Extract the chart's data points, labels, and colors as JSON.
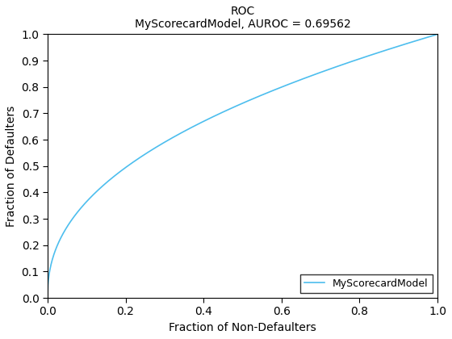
{
  "title_line1": "ROC",
  "title_line2": "MyScorecardModel, AUROC = 0.69562",
  "xlabel": "Fraction of Non-Defaulters",
  "ylabel": "Fraction of Defaulters",
  "legend_label": "MyScorecardModel",
  "line_color": "#4DBEEE",
  "line_width": 1.2,
  "auroc": 0.69562,
  "xlim": [
    0,
    1
  ],
  "ylim": [
    0,
    1
  ],
  "xticks": [
    0,
    0.2,
    0.4,
    0.6,
    0.8,
    1.0
  ],
  "yticks": [
    0,
    0.1,
    0.2,
    0.3,
    0.4,
    0.5,
    0.6,
    0.7,
    0.8,
    0.9,
    1.0
  ],
  "background_color": "#ffffff",
  "legend_loc": "lower right",
  "title_fontsize": 10,
  "label_fontsize": 10,
  "tick_fontsize": 10,
  "legend_fontsize": 9,
  "figsize": [
    5.6,
    4.2
  ],
  "dpi": 100
}
